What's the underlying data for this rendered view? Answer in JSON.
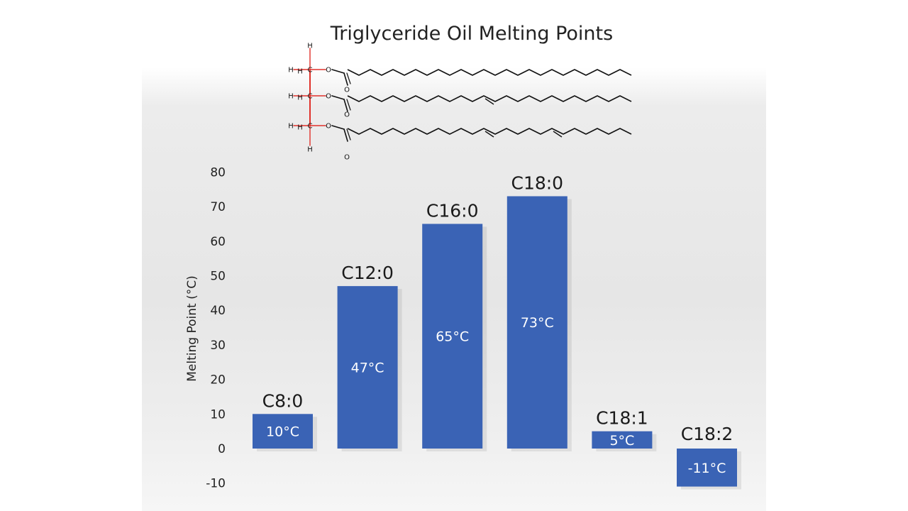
{
  "chart_data": {
    "type": "bar",
    "title": "Triglyceride Oil Melting Points",
    "ylabel": "Melting Point (°C)",
    "xlabel": "",
    "ylim": [
      -10,
      80
    ],
    "yticks": [
      80,
      70,
      60,
      50,
      40,
      30,
      20,
      10,
      0,
      -10
    ],
    "categories": [
      "C8:0",
      "C12:0",
      "C16:0",
      "C18:0",
      "C18:1",
      "C18:2"
    ],
    "values": [
      10,
      47,
      65,
      73,
      5,
      -11
    ],
    "value_labels": [
      "10°C",
      "47°C",
      "65°C",
      "73°C",
      "5°C",
      "-11°C"
    ],
    "grid": false,
    "legend": "none",
    "bar_color": "#3a63b5",
    "bond_color_glycerol": "#e0312a"
  },
  "molecule": {
    "atom_labels": [
      "H",
      "C",
      "O",
      "H",
      "C",
      "O",
      "H",
      "C",
      "O",
      "O",
      "O",
      "O",
      "H",
      "H",
      "H",
      "H",
      "H"
    ]
  }
}
